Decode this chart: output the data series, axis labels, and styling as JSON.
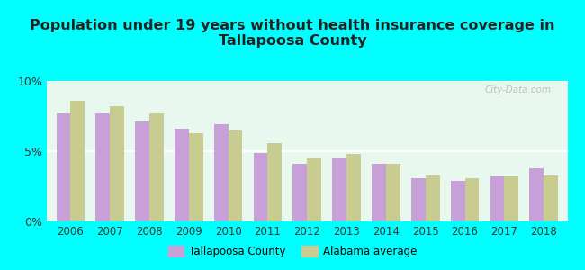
{
  "title": "Population under 19 years without health insurance coverage in\nTallapoosa County",
  "years": [
    2006,
    2007,
    2008,
    2009,
    2010,
    2011,
    2012,
    2013,
    2014,
    2015,
    2016,
    2017,
    2018
  ],
  "tallapoosa": [
    7.7,
    7.7,
    7.1,
    6.6,
    6.9,
    4.9,
    4.1,
    4.5,
    4.1,
    3.1,
    2.9,
    3.2,
    3.8
  ],
  "alabama": [
    8.6,
    8.2,
    7.7,
    6.3,
    6.5,
    5.6,
    4.5,
    4.8,
    4.1,
    3.3,
    3.1,
    3.2,
    3.3
  ],
  "tallapoosa_color": "#c8a0d8",
  "alabama_color": "#c8cc90",
  "background_color": "#00ffff",
  "plot_bg_start": "#d8f5e8",
  "plot_bg_end": "#f5ffe8",
  "title_fontsize": 11.5,
  "ylim": [
    0,
    10
  ],
  "yticks": [
    0,
    5,
    10
  ],
  "ytick_labels": [
    "0%",
    "5%",
    "10%"
  ],
  "bar_width": 0.36,
  "legend_label_tallapoosa": "Tallapoosa County",
  "legend_label_alabama": "Alabama average",
  "watermark": "City-Data.com"
}
